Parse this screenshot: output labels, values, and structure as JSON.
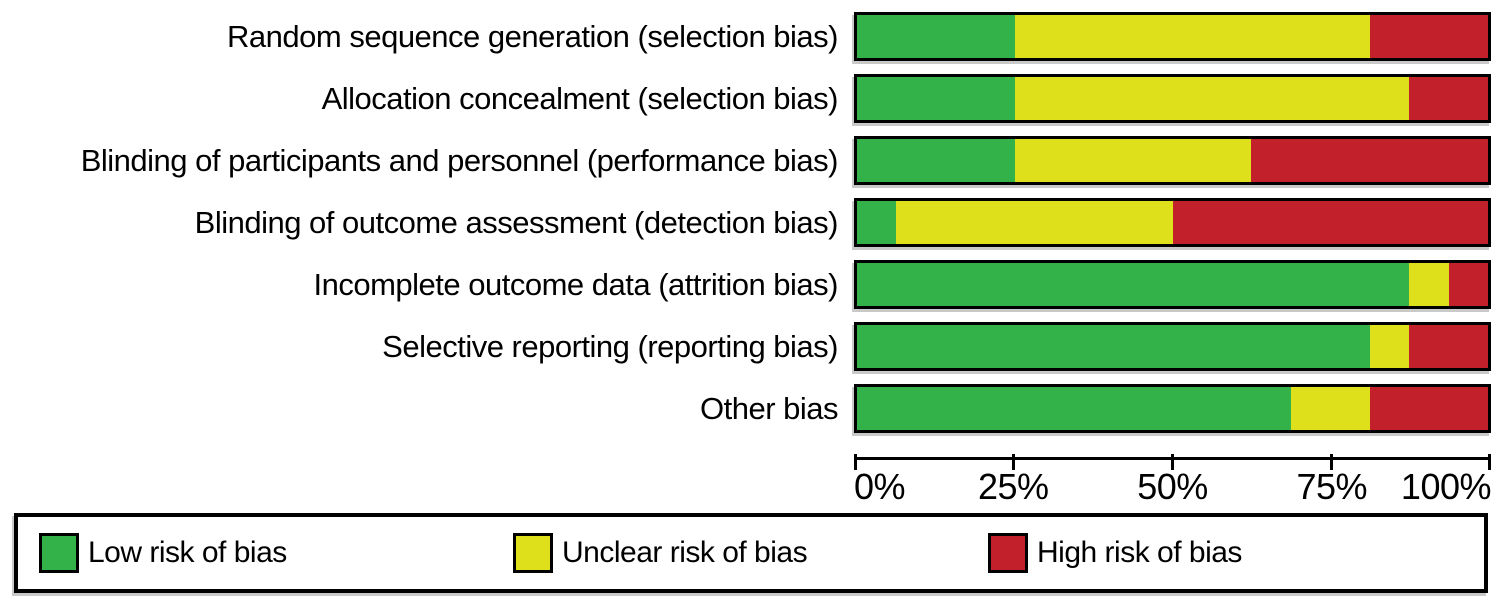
{
  "figure": {
    "background": "#ffffff",
    "border_color": "#000000",
    "shadow_color": "#c9c9c9"
  },
  "chart_data": {
    "type": "bar",
    "orientation": "horizontal",
    "stacked": true,
    "title": "",
    "xlabel": "",
    "ylabel": "",
    "xlim": [
      0,
      100
    ],
    "unit": "percent",
    "grid": false,
    "legend_position": "bottom",
    "categories": [
      "Random sequence generation (selection bias)",
      "Allocation concealment (selection bias)",
      "Blinding of participants and personnel (performance bias)",
      "Blinding of outcome assessment (detection bias)",
      "Incomplete outcome data (attrition bias)",
      "Selective reporting (reporting bias)",
      "Other bias"
    ],
    "series": [
      {
        "name": "Low risk of bias",
        "color": "#33b24a",
        "values": [
          25,
          25,
          25,
          6.25,
          87.5,
          81.25,
          68.75
        ]
      },
      {
        "name": "Unclear risk of bias",
        "color": "#dde01a",
        "values": [
          56.25,
          62.5,
          37.5,
          43.75,
          6.25,
          6.25,
          12.5
        ]
      },
      {
        "name": "High risk of bias",
        "color": "#c2202a",
        "values": [
          18.75,
          12.5,
          37.5,
          50,
          6.25,
          12.5,
          18.75
        ]
      }
    ],
    "x_ticks": [
      "0%",
      "25%",
      "50%",
      "75%",
      "100%"
    ]
  }
}
